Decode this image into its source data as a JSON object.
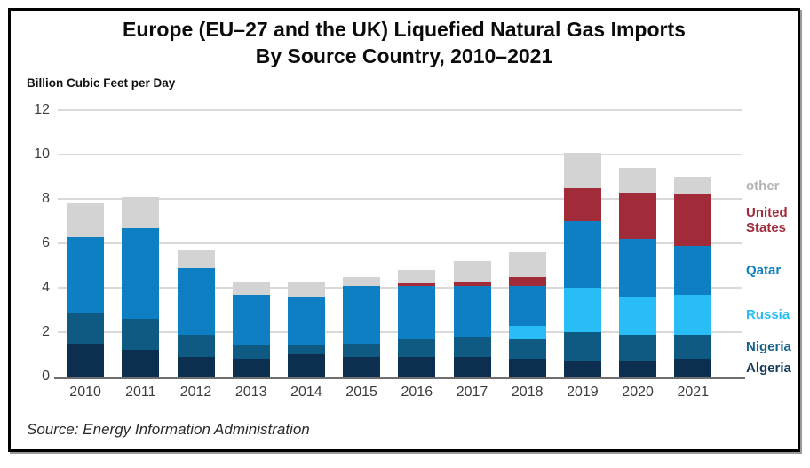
{
  "chart_data": {
    "type": "stacked-bar",
    "title": "Europe (EU–27 and the UK) Liquefied Natural Gas Imports By Source Country, 2010–2021",
    "title_line1": "Europe (EU–27 and the UK) Liquefied Natural Gas Imports",
    "title_line2": "By Source Country, 2010–2021",
    "ylabel": "Billion Cubic Feet per Day",
    "source": "Source: Energy Information Administration",
    "ylim": [
      0,
      12
    ],
    "ytick_step": 2,
    "grid": true,
    "legend_position": "right",
    "categories": [
      "2010",
      "2011",
      "2012",
      "2013",
      "2014",
      "2015",
      "2016",
      "2017",
      "2018",
      "2019",
      "2020",
      "2021"
    ],
    "series": [
      {
        "name": "Algeria",
        "color": "#0d2f4f",
        "values": [
          1.5,
          1.2,
          0.9,
          0.8,
          1.0,
          0.9,
          0.9,
          0.9,
          0.8,
          0.7,
          0.7,
          0.8
        ]
      },
      {
        "name": "Nigeria",
        "color": "#0e5a83",
        "values": [
          1.4,
          1.4,
          1.0,
          0.6,
          0.4,
          0.6,
          0.8,
          0.9,
          0.9,
          1.3,
          1.2,
          1.1
        ]
      },
      {
        "name": "Russia",
        "color": "#29bdf6",
        "values": [
          0,
          0,
          0,
          0,
          0,
          0,
          0,
          0,
          0.6,
          2.0,
          1.7,
          1.8
        ]
      },
      {
        "name": "Qatar",
        "color": "#0d7fc2",
        "values": [
          3.4,
          4.1,
          3.0,
          2.3,
          2.2,
          2.6,
          2.4,
          2.3,
          1.8,
          3.0,
          2.6,
          2.2
        ]
      },
      {
        "name": "United States",
        "color": "#a22b3a",
        "values": [
          0,
          0,
          0,
          0,
          0,
          0,
          0.1,
          0.2,
          0.4,
          1.5,
          2.1,
          2.3
        ]
      },
      {
        "name": "other",
        "color": "#d3d3d3",
        "values": [
          1.5,
          1.4,
          0.8,
          0.6,
          0.7,
          0.4,
          0.6,
          0.9,
          1.1,
          1.6,
          1.1,
          0.8
        ]
      }
    ],
    "totals": [
      7.8,
      8.1,
      5.7,
      4.3,
      4.3,
      4.5,
      4.8,
      5.2,
      5.6,
      10.1,
      9.4,
      9.0
    ],
    "legend": [
      {
        "label": "other",
        "series": "other",
        "color": "#b3b3b3"
      },
      {
        "label": "United States",
        "series": "United States",
        "color": "#a22b3a"
      },
      {
        "label": "Qatar",
        "series": "Qatar",
        "color": "#0d7fc2"
      },
      {
        "label": "Russia",
        "series": "Russia",
        "color": "#29bdf6"
      },
      {
        "label": "Nigeria",
        "series": "Nigeria",
        "color": "#16618e"
      },
      {
        "label": "Algeria",
        "series": "Algeria",
        "color": "#12395c"
      }
    ]
  },
  "colors": {
    "frame_border": "#000000",
    "background": "#ffffff",
    "grid": "#d9d9d9",
    "axis": "#6e6e6e",
    "tick_text": "#3c3c3c"
  }
}
